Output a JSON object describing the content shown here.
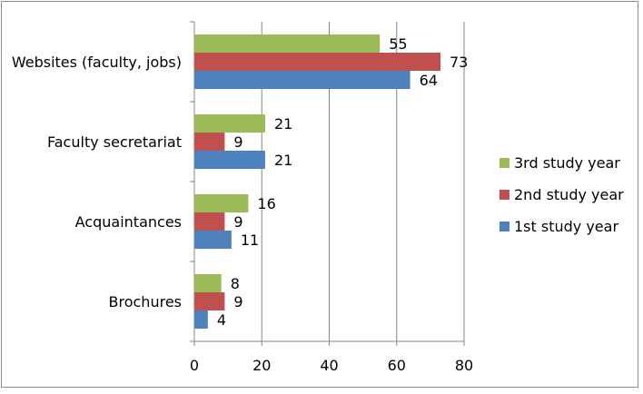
{
  "chart_data": {
    "type": "bar",
    "orientation": "horizontal",
    "title": "",
    "xlabel": "",
    "ylabel": "",
    "categories": [
      "Websites (faculty, jobs)",
      "Faculty secretariat",
      "Acquaintances",
      "Brochures"
    ],
    "series": [
      {
        "name": "3rd study year",
        "values": [
          55,
          21,
          16,
          8
        ],
        "color": "#9bbb59"
      },
      {
        "name": "2nd study year",
        "values": [
          73,
          9,
          9,
          9
        ],
        "color": "#c0504d"
      },
      {
        "name": "1st study year",
        "values": [
          64,
          21,
          11,
          4
        ],
        "color": "#4f81bd"
      }
    ],
    "xlim": [
      0,
      80
    ],
    "x_ticks": [
      0,
      20,
      40,
      60,
      80
    ],
    "gridlines": "vertical",
    "data_labels": true,
    "legend_position": "right"
  }
}
